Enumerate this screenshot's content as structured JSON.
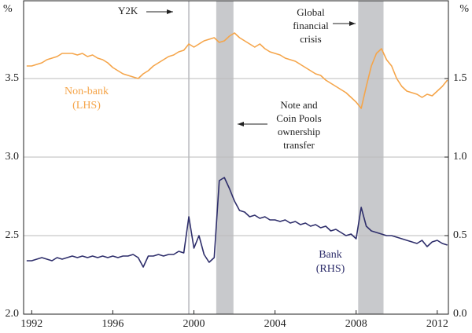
{
  "chart_data": {
    "type": "line",
    "y_unit": "%",
    "y2_unit": "%",
    "xlim": [
      1991.6,
      2012.55
    ],
    "xticks": [
      1992,
      1996,
      2000,
      2004,
      2008,
      2012
    ],
    "ylim": [
      2.0,
      4.0
    ],
    "yticks": [
      {
        "value": 2.0,
        "label": "2.0"
      },
      {
        "value": 2.5,
        "label": "2.5"
      },
      {
        "value": 3.0,
        "label": "3.0"
      },
      {
        "value": 3.5,
        "label": "3.5"
      }
    ],
    "y2lim": [
      0.0,
      2.0
    ],
    "y2ticks": [
      {
        "value": 0.0,
        "label": "0.0"
      },
      {
        "value": 0.5,
        "label": "0.5"
      },
      {
        "value": 1.0,
        "label": "1.0"
      },
      {
        "value": 1.5,
        "label": "1.5"
      }
    ],
    "grid": true,
    "shaded": [
      [
        2001.1,
        2001.95
      ],
      [
        2008.1,
        2009.35
      ]
    ],
    "shade_color": "#c8c9cc",
    "vlines": [
      1999.75
    ],
    "annotations": [
      {
        "lines": [
          "Y2K"
        ]
      },
      {
        "lines": [
          "Global",
          "financial",
          "crisis"
        ]
      },
      {
        "lines": [
          "Note and",
          "Coin Pools",
          "ownership",
          "transfer"
        ]
      }
    ],
    "x": [
      1991.75,
      1992.0,
      1992.25,
      1992.5,
      1992.75,
      1993.0,
      1993.25,
      1993.5,
      1993.75,
      1994.0,
      1994.25,
      1994.5,
      1994.75,
      1995.0,
      1995.25,
      1995.5,
      1995.75,
      1996.0,
      1996.25,
      1996.5,
      1996.75,
      1997.0,
      1997.25,
      1997.5,
      1997.75,
      1998.0,
      1998.25,
      1998.5,
      1998.75,
      1999.0,
      1999.25,
      1999.5,
      1999.75,
      2000.0,
      2000.25,
      2000.5,
      2000.75,
      2001.0,
      2001.25,
      2001.5,
      2001.75,
      2002.0,
      2002.25,
      2002.5,
      2002.75,
      2003.0,
      2003.25,
      2003.5,
      2003.75,
      2004.0,
      2004.25,
      2004.5,
      2004.75,
      2005.0,
      2005.25,
      2005.5,
      2005.75,
      2006.0,
      2006.25,
      2006.5,
      2006.75,
      2007.0,
      2007.25,
      2007.5,
      2007.75,
      2008.0,
      2008.25,
      2008.5,
      2008.75,
      2009.0,
      2009.25,
      2009.5,
      2009.75,
      2010.0,
      2010.25,
      2010.5,
      2010.75,
      2011.0,
      2011.25,
      2011.5,
      2011.75,
      2012.0,
      2012.25,
      2012.5
    ],
    "series": [
      {
        "name": "Non-bank",
        "axis_label": "(LHS)",
        "color": "#f5a54a",
        "axis": "y",
        "values": [
          3.58,
          3.58,
          3.59,
          3.6,
          3.62,
          3.63,
          3.64,
          3.66,
          3.66,
          3.66,
          3.65,
          3.66,
          3.64,
          3.65,
          3.63,
          3.62,
          3.6,
          3.57,
          3.55,
          3.53,
          3.52,
          3.51,
          3.5,
          3.53,
          3.55,
          3.58,
          3.6,
          3.62,
          3.64,
          3.65,
          3.67,
          3.68,
          3.72,
          3.7,
          3.72,
          3.74,
          3.75,
          3.76,
          3.73,
          3.74,
          3.77,
          3.79,
          3.76,
          3.74,
          3.72,
          3.7,
          3.72,
          3.69,
          3.67,
          3.66,
          3.65,
          3.63,
          3.62,
          3.61,
          3.59,
          3.57,
          3.55,
          3.53,
          3.52,
          3.49,
          3.47,
          3.45,
          3.43,
          3.41,
          3.38,
          3.35,
          3.31,
          3.45,
          3.58,
          3.66,
          3.69,
          3.62,
          3.58,
          3.5,
          3.45,
          3.42,
          3.41,
          3.4,
          3.38,
          3.4,
          3.39,
          3.42,
          3.45,
          3.49
        ]
      },
      {
        "name": "Bank",
        "axis_label": "(RHS)",
        "color": "#2e2e6b",
        "axis": "y2",
        "values": [
          0.34,
          0.34,
          0.35,
          0.36,
          0.35,
          0.34,
          0.36,
          0.35,
          0.36,
          0.37,
          0.36,
          0.37,
          0.36,
          0.37,
          0.36,
          0.37,
          0.36,
          0.37,
          0.36,
          0.37,
          0.37,
          0.38,
          0.36,
          0.3,
          0.37,
          0.37,
          0.38,
          0.37,
          0.38,
          0.38,
          0.4,
          0.39,
          0.62,
          0.42,
          0.5,
          0.38,
          0.33,
          0.36,
          0.85,
          0.87,
          0.8,
          0.72,
          0.66,
          0.65,
          0.62,
          0.63,
          0.61,
          0.62,
          0.6,
          0.6,
          0.59,
          0.6,
          0.58,
          0.59,
          0.57,
          0.58,
          0.56,
          0.57,
          0.55,
          0.56,
          0.53,
          0.54,
          0.52,
          0.5,
          0.51,
          0.48,
          0.68,
          0.56,
          0.53,
          0.52,
          0.51,
          0.5,
          0.5,
          0.49,
          0.48,
          0.47,
          0.46,
          0.45,
          0.47,
          0.43,
          0.46,
          0.47,
          0.45,
          0.44
        ]
      }
    ]
  }
}
